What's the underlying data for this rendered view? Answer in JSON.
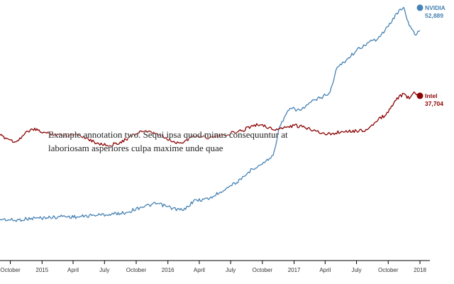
{
  "chart_data": {
    "type": "line",
    "title": "",
    "xlabel": "",
    "ylabel": "",
    "ylim": [
      0,
      60000
    ],
    "x_range": [
      "2014-09-01",
      "2018-01-01"
    ],
    "grid": false,
    "x_ticks": [
      {
        "date": "2014-10-01",
        "label": "October"
      },
      {
        "date": "2015-01-01",
        "label": "2015"
      },
      {
        "date": "2015-04-01",
        "label": "April"
      },
      {
        "date": "2015-07-01",
        "label": "July"
      },
      {
        "date": "2015-10-01",
        "label": "October"
      },
      {
        "date": "2016-01-01",
        "label": "2016"
      },
      {
        "date": "2016-04-01",
        "label": "April"
      },
      {
        "date": "2016-07-01",
        "label": "July"
      },
      {
        "date": "2016-10-01",
        "label": "October"
      },
      {
        "date": "2017-01-01",
        "label": "2017"
      },
      {
        "date": "2017-04-01",
        "label": "April"
      },
      {
        "date": "2017-07-01",
        "label": "July"
      },
      {
        "date": "2017-10-01",
        "label": "October"
      },
      {
        "date": "2018-01-01",
        "label": "2018"
      }
    ],
    "series": [
      {
        "name": "NVIDIA",
        "color": "#4682b4",
        "end_label": "52,889",
        "points": [
          [
            "2014-09-01",
            9000
          ],
          [
            "2014-10-15",
            8700
          ],
          [
            "2014-12-01",
            9200
          ],
          [
            "2015-01-15",
            9300
          ],
          [
            "2015-03-01",
            9600
          ],
          [
            "2015-04-15",
            9500
          ],
          [
            "2015-06-01",
            9900
          ],
          [
            "2015-07-15",
            10100
          ],
          [
            "2015-09-01",
            10500
          ],
          [
            "2015-10-15",
            11800
          ],
          [
            "2015-12-01",
            12600
          ],
          [
            "2016-01-15",
            11500
          ],
          [
            "2016-02-15",
            11000
          ],
          [
            "2016-03-15",
            13200
          ],
          [
            "2016-05-01",
            13800
          ],
          [
            "2016-06-01",
            15300
          ],
          [
            "2016-07-01",
            16800
          ],
          [
            "2016-08-01",
            18200
          ],
          [
            "2016-09-01",
            20700
          ],
          [
            "2016-10-01",
            21800
          ],
          [
            "2016-11-01",
            23800
          ],
          [
            "2016-11-20",
            30500
          ],
          [
            "2016-12-20",
            34800
          ],
          [
            "2017-01-20",
            34300
          ],
          [
            "2017-02-20",
            36300
          ],
          [
            "2017-03-20",
            37300
          ],
          [
            "2017-04-15",
            38500
          ],
          [
            "2017-05-05",
            44200
          ],
          [
            "2017-06-01",
            46000
          ],
          [
            "2017-07-01",
            48300
          ],
          [
            "2017-08-01",
            50000
          ],
          [
            "2017-09-01",
            51000
          ],
          [
            "2017-10-01",
            53800
          ],
          [
            "2017-10-25",
            56900
          ],
          [
            "2017-11-15",
            58300
          ],
          [
            "2017-12-01",
            54000
          ],
          [
            "2017-12-20",
            51800
          ],
          [
            "2018-01-01",
            52889
          ]
        ]
      },
      {
        "name": "Intel",
        "color": "#8b0000",
        "end_label": "37,704",
        "points": [
          [
            "2014-09-01",
            28500
          ],
          [
            "2014-10-15",
            27000
          ],
          [
            "2014-12-01",
            30000
          ],
          [
            "2015-01-15",
            29000
          ],
          [
            "2015-03-01",
            28500
          ],
          [
            "2015-04-15",
            28800
          ],
          [
            "2015-06-01",
            27000
          ],
          [
            "2015-07-15",
            26000
          ],
          [
            "2015-09-01",
            27500
          ],
          [
            "2015-10-15",
            29500
          ],
          [
            "2015-12-01",
            28800
          ],
          [
            "2016-01-15",
            27000
          ],
          [
            "2016-02-15",
            26800
          ],
          [
            "2016-03-15",
            28500
          ],
          [
            "2016-05-01",
            28000
          ],
          [
            "2016-06-01",
            28300
          ],
          [
            "2016-07-01",
            29000
          ],
          [
            "2016-08-01",
            29500
          ],
          [
            "2016-09-01",
            30800
          ],
          [
            "2016-10-01",
            31000
          ],
          [
            "2016-11-01",
            29800
          ],
          [
            "2016-12-01",
            30200
          ],
          [
            "2017-01-01",
            30800
          ],
          [
            "2017-02-01",
            30300
          ],
          [
            "2017-03-01",
            29800
          ],
          [
            "2017-04-01",
            28700
          ],
          [
            "2017-05-01",
            29000
          ],
          [
            "2017-06-01",
            29600
          ],
          [
            "2017-07-01",
            29500
          ],
          [
            "2017-08-01",
            29800
          ],
          [
            "2017-09-01",
            32000
          ],
          [
            "2017-10-01",
            33800
          ],
          [
            "2017-10-20",
            36500
          ],
          [
            "2017-11-15",
            38200
          ],
          [
            "2017-12-01",
            37000
          ],
          [
            "2017-12-15",
            38600
          ],
          [
            "2018-01-01",
            37704
          ]
        ]
      }
    ],
    "annotations": [
      {
        "text": "Example annotation two. Sequi ipsa quod minus consequuntur at laboriosam asperiores culpa maxime unde quae"
      }
    ]
  }
}
